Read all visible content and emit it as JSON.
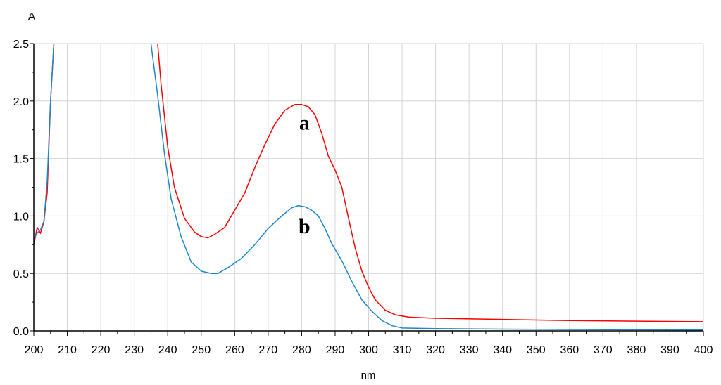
{
  "chart_data": {
    "type": "line",
    "ylabel": "A",
    "xlabel": "nm",
    "xlim": [
      200,
      400
    ],
    "ylim": [
      0,
      2.5
    ],
    "x_ticks": [
      200,
      210,
      220,
      230,
      240,
      250,
      260,
      270,
      280,
      290,
      300,
      310,
      320,
      330,
      340,
      350,
      360,
      370,
      380,
      390,
      400
    ],
    "x_tick_labels": [
      "200",
      "210",
      "220",
      "230",
      "240",
      "250",
      "260",
      "270",
      "280",
      "290",
      "300",
      "310",
      "320",
      "330",
      "340",
      "350",
      "360",
      "370",
      "380",
      "390",
      "400"
    ],
    "y_ticks": [
      0,
      0.5,
      1,
      1.5,
      2,
      2.5
    ],
    "y_tick_labels": [
      "0.0",
      "0.5",
      "1.0",
      "1.5",
      "2.0",
      "2.5"
    ],
    "grid": true,
    "colors": {
      "grid": "#d4d4d4",
      "axis": "#000000"
    },
    "series": [
      {
        "id": "a",
        "color": "#ff0000",
        "points": [
          [
            200,
            0.75
          ],
          [
            201,
            0.9
          ],
          [
            202,
            0.85
          ],
          [
            203,
            0.95
          ],
          [
            204,
            1.2
          ],
          [
            205,
            2.0
          ],
          [
            206,
            2.5
          ],
          [
            237,
            2.5
          ],
          [
            238,
            2.15
          ],
          [
            240,
            1.6
          ],
          [
            242,
            1.25
          ],
          [
            245,
            0.98
          ],
          [
            248,
            0.86
          ],
          [
            250,
            0.82
          ],
          [
            252,
            0.81
          ],
          [
            254,
            0.84
          ],
          [
            257,
            0.9
          ],
          [
            260,
            1.05
          ],
          [
            263,
            1.2
          ],
          [
            266,
            1.42
          ],
          [
            269,
            1.62
          ],
          [
            272,
            1.8
          ],
          [
            275,
            1.92
          ],
          [
            278,
            1.97
          ],
          [
            280,
            1.97
          ],
          [
            282,
            1.95
          ],
          [
            284,
            1.88
          ],
          [
            286,
            1.72
          ],
          [
            288,
            1.52
          ],
          [
            290,
            1.4
          ],
          [
            292,
            1.25
          ],
          [
            294,
            0.98
          ],
          [
            296,
            0.72
          ],
          [
            298,
            0.52
          ],
          [
            300,
            0.38
          ],
          [
            302,
            0.27
          ],
          [
            305,
            0.18
          ],
          [
            308,
            0.14
          ],
          [
            312,
            0.12
          ],
          [
            320,
            0.11
          ],
          [
            340,
            0.1
          ],
          [
            360,
            0.09
          ],
          [
            380,
            0.085
          ],
          [
            400,
            0.08
          ]
        ]
      },
      {
        "id": "b",
        "color": "#1f86c9",
        "points": [
          [
            200,
            0.8
          ],
          [
            201,
            0.85
          ],
          [
            202,
            0.88
          ],
          [
            203,
            0.95
          ],
          [
            204,
            1.3
          ],
          [
            205,
            2.0
          ],
          [
            206,
            2.5
          ],
          [
            235,
            2.5
          ],
          [
            237,
            2.05
          ],
          [
            239,
            1.55
          ],
          [
            241,
            1.15
          ],
          [
            244,
            0.82
          ],
          [
            247,
            0.6
          ],
          [
            250,
            0.52
          ],
          [
            253,
            0.5
          ],
          [
            255,
            0.5
          ],
          [
            258,
            0.55
          ],
          [
            262,
            0.63
          ],
          [
            266,
            0.75
          ],
          [
            270,
            0.89
          ],
          [
            274,
            1.0
          ],
          [
            277,
            1.07
          ],
          [
            279,
            1.09
          ],
          [
            281,
            1.08
          ],
          [
            283,
            1.05
          ],
          [
            285,
            1.0
          ],
          [
            287,
            0.89
          ],
          [
            289,
            0.76
          ],
          [
            292,
            0.61
          ],
          [
            295,
            0.43
          ],
          [
            298,
            0.27
          ],
          [
            301,
            0.17
          ],
          [
            304,
            0.09
          ],
          [
            307,
            0.045
          ],
          [
            310,
            0.025
          ],
          [
            320,
            0.02
          ],
          [
            340,
            0.015
          ],
          [
            360,
            0.012
          ],
          [
            380,
            0.01
          ],
          [
            400,
            0.008
          ]
        ]
      }
    ],
    "annotations": [
      {
        "text": "a",
        "x": 280,
        "y": 1.75
      },
      {
        "text": "b",
        "x": 280,
        "y": 0.85
      }
    ]
  }
}
